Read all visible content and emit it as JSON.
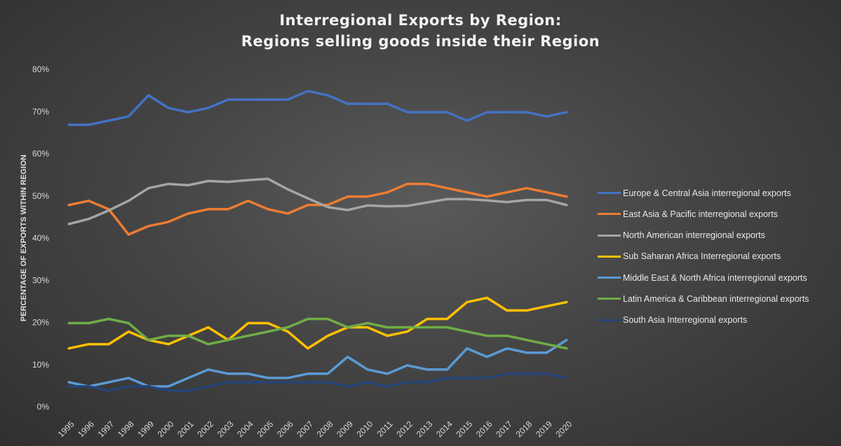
{
  "chart_data": {
    "type": "line",
    "title_lines": [
      "Interregional Exports by Region:",
      "Regions selling goods inside their Region"
    ],
    "xlabel": "",
    "ylabel": "PERCENTAGE OF EXPORTS WITHIN REGION",
    "ylim": [
      0,
      80
    ],
    "y_ticks": [
      "0%",
      "10%",
      "20%",
      "30%",
      "40%",
      "50%",
      "60%",
      "70%",
      "80%"
    ],
    "grid": false,
    "legend_position": "right",
    "x": [
      "1995",
      "1996",
      "1997",
      "1998",
      "1999",
      "2000",
      "2001",
      "2002",
      "2003",
      "2004",
      "2005",
      "2006",
      "2007",
      "2008",
      "2009",
      "2010",
      "2011",
      "2012",
      "2013",
      "2014",
      "2015",
      "2016",
      "2017",
      "2018",
      "2019",
      "2020"
    ],
    "series": [
      {
        "name": "Europe & Central Asia interregional exports",
        "color": "#4472c4",
        "values": [
          67,
          67,
          68,
          69,
          74,
          71,
          70,
          71,
          73,
          73,
          73,
          73,
          75,
          74,
          72,
          72,
          72,
          70,
          70,
          70,
          68,
          70,
          70,
          70,
          69,
          70
        ]
      },
      {
        "name": "East Asia & Pacific interregional exports",
        "color": "#ed7d31",
        "values": [
          48,
          49,
          47,
          41,
          43,
          44,
          46,
          47,
          47,
          49,
          47,
          46,
          48,
          48,
          50,
          50,
          51,
          53,
          53,
          52,
          51,
          50,
          51,
          52,
          51,
          50
        ]
      },
      {
        "name": "North American interregional exports",
        "color": "#a5a5a5",
        "values": [
          43.5,
          44.7,
          46.7,
          49,
          52,
          53,
          52.7,
          53.7,
          53.5,
          53.9,
          54.2,
          51.7,
          49.6,
          47.5,
          46.8,
          47.9,
          47.7,
          47.8,
          48.6,
          49.4,
          49.4,
          49.1,
          48.7,
          49.2,
          49.2,
          48
        ]
      },
      {
        "name": "Sub Saharan Africa Interregional exports",
        "color": "#ffc000",
        "values": [
          14,
          15,
          15,
          18,
          16,
          15,
          17,
          19,
          16,
          20,
          20,
          18,
          14,
          17,
          19,
          19,
          17,
          18,
          21,
          21,
          25,
          26,
          23,
          23,
          24,
          25
        ]
      },
      {
        "name": "Middle East & North Africa interregional exports",
        "color": "#5b9bd5",
        "values": [
          6,
          5,
          6,
          7,
          5,
          5,
          7,
          9,
          8,
          8,
          7,
          7,
          8,
          8,
          12,
          9,
          8,
          10,
          9,
          9,
          14,
          12,
          14,
          13,
          13,
          16
        ]
      },
      {
        "name": "Latin America & Caribbean interregional exports",
        "color": "#70ad47",
        "values": [
          20,
          20,
          21,
          20,
          16,
          17,
          17,
          15,
          16,
          17,
          18,
          19,
          21,
          21,
          19,
          20,
          19,
          19,
          19,
          19,
          18,
          17,
          17,
          16,
          15,
          14
        ]
      },
      {
        "name": "South Asia  Interregional exports",
        "color": "#264478",
        "values": [
          5,
          5,
          4,
          5,
          5,
          4,
          4,
          5,
          6,
          6,
          6,
          6,
          6,
          6,
          5,
          6,
          5,
          6,
          6,
          7,
          7,
          7,
          8,
          8,
          8,
          7
        ]
      }
    ]
  }
}
